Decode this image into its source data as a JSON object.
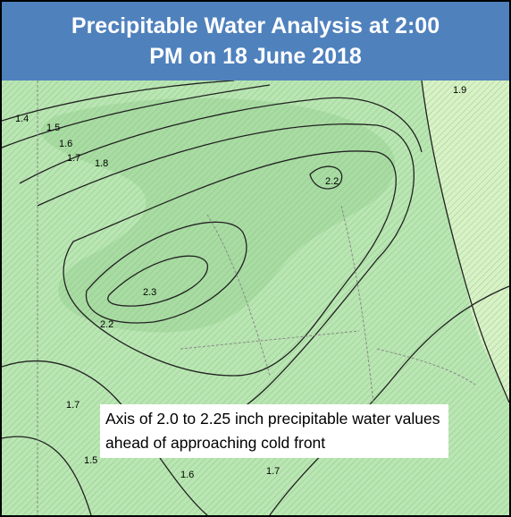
{
  "header": {
    "title": "Precipitable Water Analysis at 2:00 PM on 18 June 2018"
  },
  "annotation": {
    "text": "Axis of 2.0 to 2.25 inch precipitable water values ahead of approaching cold front"
  },
  "contour_labels": [
    "1.4",
    "1.5",
    "1.6",
    "1.7",
    "1.8",
    "2.2",
    "2.3",
    "2.2",
    "1.7",
    "1.5",
    "1.6",
    "1.7",
    "1.9"
  ]
}
